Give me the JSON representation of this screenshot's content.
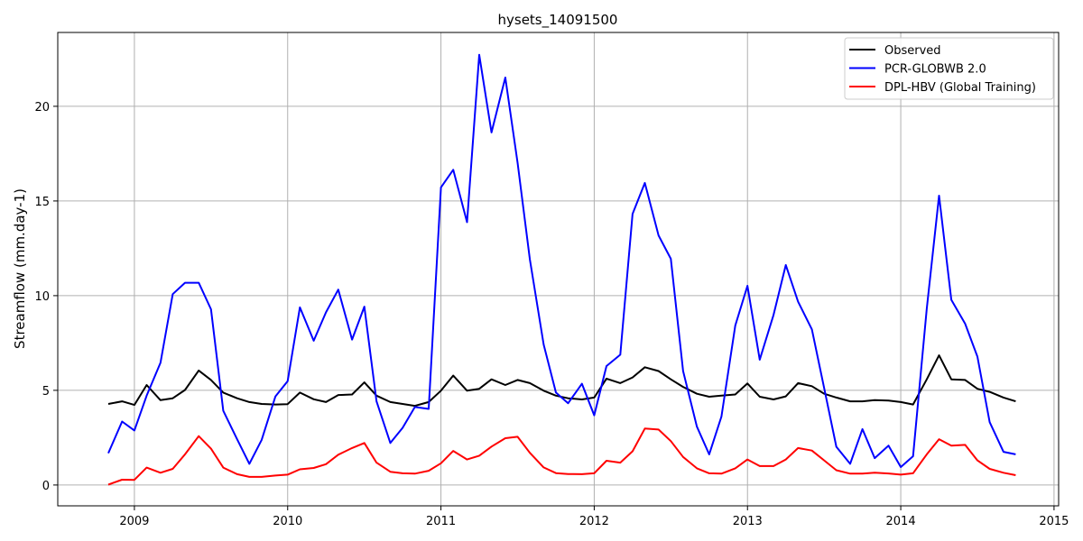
{
  "chart_data": {
    "type": "line",
    "title": "hysets_14091500",
    "xlabel": "",
    "ylabel": "Streamflow (mm.day-1)",
    "xlim": [
      2008.5,
      2015.03
    ],
    "ylim": [
      -1.1,
      23.9
    ],
    "grid": true,
    "legend_position": "top-right",
    "x_ticks": [
      2009,
      2010,
      2011,
      2012,
      2013,
      2014,
      2015
    ],
    "x_tick_labels": [
      "2009",
      "2010",
      "2011",
      "2012",
      "2013",
      "2014",
      "2015"
    ],
    "y_ticks": [
      0,
      5,
      10,
      15,
      20
    ],
    "y_tick_labels": [
      "0",
      "5",
      "10",
      "15",
      "20"
    ],
    "x": [
      2008.83,
      2008.92,
      2009.0,
      2009.08,
      2009.17,
      2009.25,
      2009.33,
      2009.42,
      2009.5,
      2009.58,
      2009.67,
      2009.75,
      2009.83,
      2009.92,
      2010.0,
      2010.08,
      2010.17,
      2010.25,
      2010.33,
      2010.42,
      2010.5,
      2010.58,
      2010.67,
      2010.75,
      2010.83,
      2010.92,
      2011.0,
      2011.08,
      2011.17,
      2011.25,
      2011.33,
      2011.42,
      2011.5,
      2011.58,
      2011.67,
      2011.75,
      2011.83,
      2011.92,
      2012.0,
      2012.08,
      2012.17,
      2012.25,
      2012.33,
      2012.42,
      2012.5,
      2012.58,
      2012.67,
      2012.75,
      2012.83,
      2012.92,
      2013.0,
      2013.08,
      2013.17,
      2013.25,
      2013.33,
      2013.42,
      2013.5,
      2013.58,
      2013.67,
      2013.75,
      2013.83,
      2013.92,
      2014.0,
      2014.08,
      2014.17,
      2014.25,
      2014.33,
      2014.42,
      2014.5,
      2014.58,
      2014.67,
      2014.75
    ],
    "series": [
      {
        "name": "Observed",
        "color": "#000000",
        "values": [
          4.28,
          4.42,
          4.23,
          5.28,
          4.48,
          4.58,
          5.02,
          6.05,
          5.55,
          4.88,
          4.58,
          4.38,
          4.28,
          4.25,
          4.27,
          4.88,
          4.53,
          4.38,
          4.75,
          4.78,
          5.42,
          4.72,
          4.38,
          4.28,
          4.18,
          4.38,
          4.98,
          5.78,
          4.98,
          5.08,
          5.58,
          5.28,
          5.55,
          5.38,
          4.98,
          4.72,
          4.58,
          4.52,
          4.62,
          5.62,
          5.38,
          5.68,
          6.22,
          6.02,
          5.58,
          5.18,
          4.82,
          4.66,
          4.72,
          4.78,
          5.36,
          4.66,
          4.52,
          4.68,
          5.38,
          5.22,
          4.82,
          4.62,
          4.42,
          4.42,
          4.48,
          4.46,
          4.38,
          4.25,
          5.58,
          6.85,
          5.58,
          5.55,
          5.08,
          4.92,
          4.62,
          4.42
        ]
      },
      {
        "name": "PCR-GLOBWB 2.0",
        "color": "#0000ff",
        "values": [
          1.68,
          3.35,
          2.88,
          4.72,
          6.45,
          10.08,
          10.68,
          10.68,
          9.28,
          3.92,
          2.42,
          1.12,
          2.38,
          4.68,
          5.48,
          9.38,
          7.62,
          9.12,
          10.32,
          7.68,
          9.42,
          4.42,
          2.22,
          3.02,
          4.12,
          4.02,
          15.72,
          16.65,
          13.88,
          22.72,
          18.62,
          21.52,
          17.02,
          11.92,
          7.42,
          4.88,
          4.32,
          5.35,
          3.68,
          6.28,
          6.88,
          14.32,
          15.95,
          13.18,
          11.95,
          6.02,
          3.08,
          1.62,
          3.62,
          8.42,
          10.52,
          6.62,
          8.98,
          11.62,
          9.68,
          8.22,
          5.12,
          2.02,
          1.12,
          2.95,
          1.42,
          2.08,
          0.95,
          1.52,
          9.32,
          15.28,
          9.78,
          8.52,
          6.78,
          3.32,
          1.75,
          1.62
        ]
      },
      {
        "name": "DPL-HBV (Global Training)",
        "color": "#ff0000",
        "values": [
          0.02,
          0.28,
          0.27,
          0.92,
          0.65,
          0.85,
          1.62,
          2.58,
          1.92,
          0.92,
          0.57,
          0.43,
          0.43,
          0.5,
          0.55,
          0.83,
          0.9,
          1.1,
          1.6,
          1.95,
          2.22,
          1.18,
          0.7,
          0.62,
          0.6,
          0.75,
          1.15,
          1.8,
          1.35,
          1.55,
          2.03,
          2.47,
          2.55,
          1.7,
          0.93,
          0.63,
          0.58,
          0.57,
          0.62,
          1.28,
          1.18,
          1.78,
          2.98,
          2.93,
          2.32,
          1.48,
          0.88,
          0.62,
          0.6,
          0.88,
          1.35,
          1.0,
          1.0,
          1.35,
          1.95,
          1.82,
          1.3,
          0.78,
          0.6,
          0.6,
          0.65,
          0.61,
          0.55,
          0.62,
          1.62,
          2.42,
          2.08,
          2.12,
          1.3,
          0.85,
          0.65,
          0.52
        ]
      }
    ]
  }
}
